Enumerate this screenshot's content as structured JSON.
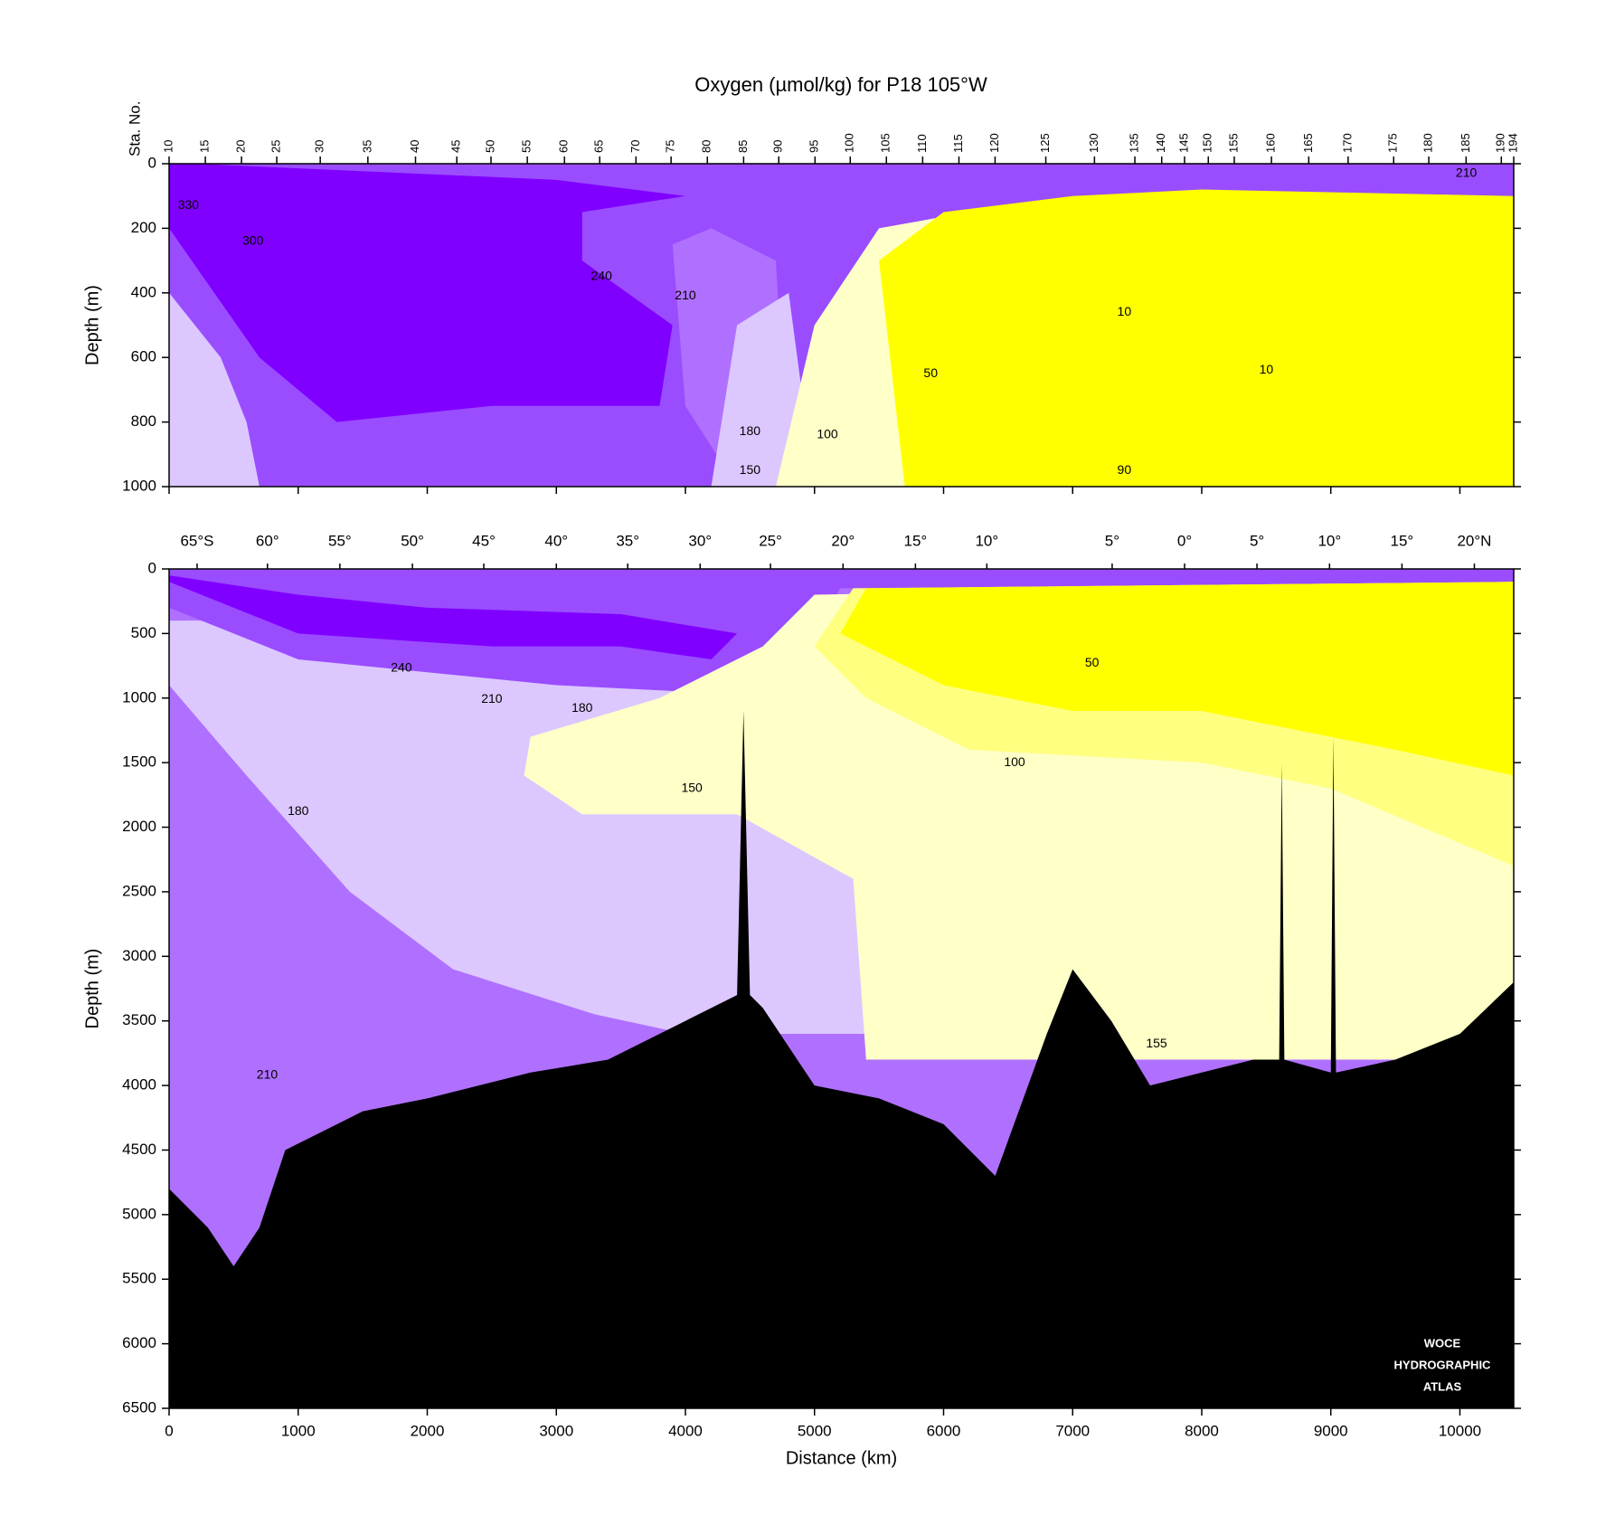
{
  "title": "Oxygen (µmol/kg) for P18 105°W",
  "chart_data": [
    {
      "type": "section",
      "station_axis_label": "Sta. No.",
      "y_label": "Depth (m)",
      "xlim": [
        0,
        10417
      ],
      "xticks": [
        0,
        1000,
        2000,
        3000,
        4000,
        5000,
        6000,
        7000,
        8000,
        9000,
        10000
      ],
      "ylim": [
        1000,
        0
      ],
      "yticks": [
        0,
        200,
        400,
        600,
        800,
        1000
      ],
      "station_ticks": [
        {
          "value": 0,
          "label": "10"
        },
        {
          "value": 281,
          "label": "15"
        },
        {
          "value": 561,
          "label": "20"
        },
        {
          "value": 834,
          "label": "25"
        },
        {
          "value": 1171,
          "label": "30"
        },
        {
          "value": 1540,
          "label": "35"
        },
        {
          "value": 1909,
          "label": "40"
        },
        {
          "value": 2229,
          "label": "45"
        },
        {
          "value": 2494,
          "label": "50"
        },
        {
          "value": 2775,
          "label": "55"
        },
        {
          "value": 3063,
          "label": "60"
        },
        {
          "value": 3336,
          "label": "65"
        },
        {
          "value": 3617,
          "label": "70"
        },
        {
          "value": 3889,
          "label": "75"
        },
        {
          "value": 4170,
          "label": "80"
        },
        {
          "value": 4451,
          "label": "85"
        },
        {
          "value": 4723,
          "label": "90"
        },
        {
          "value": 5004,
          "label": "95"
        },
        {
          "value": 5277,
          "label": "100"
        },
        {
          "value": 5557,
          "label": "105"
        },
        {
          "value": 5838,
          "label": "110"
        },
        {
          "value": 6119,
          "label": "115"
        },
        {
          "value": 6399,
          "label": "120"
        },
        {
          "value": 6792,
          "label": "125"
        },
        {
          "value": 7169,
          "label": "130"
        },
        {
          "value": 7482,
          "label": "135"
        },
        {
          "value": 7690,
          "label": "140"
        },
        {
          "value": 7867,
          "label": "145"
        },
        {
          "value": 8051,
          "label": "150"
        },
        {
          "value": 8252,
          "label": "155"
        },
        {
          "value": 8540,
          "label": "160"
        },
        {
          "value": 8829,
          "label": "165"
        },
        {
          "value": 9134,
          "label": "170"
        },
        {
          "value": 9487,
          "label": "175"
        },
        {
          "value": 9759,
          "label": "180"
        },
        {
          "value": 10048,
          "label": "185"
        },
        {
          "value": 10321,
          "label": "190"
        },
        {
          "value": 10417,
          "label": "194"
        }
      ],
      "background": "#9a4dff",
      "regions": [
        {
          "color": "#dcc8ff",
          "x": [
            0,
            0,
            700,
            600,
            400
          ],
          "depth": [
            400,
            1000,
            1000,
            800,
            600
          ]
        },
        {
          "color": "#8000ff",
          "x": [
            200,
            0,
            0,
            700,
            1300,
            2500,
            3800,
            3900,
            3200,
            3200,
            4000,
            3000
          ],
          "depth": [
            0,
            0,
            200,
            600,
            800,
            750,
            750,
            500,
            300,
            150,
            100,
            50
          ]
        },
        {
          "color": "#b070ff",
          "x": [
            3900,
            4200,
            4700,
            4800,
            4400,
            4000
          ],
          "depth": [
            250,
            200,
            300,
            1000,
            1000,
            750
          ]
        },
        {
          "color": "#dcc8ff",
          "x": [
            4400,
            4200,
            4700,
            4900,
            4800
          ],
          "depth": [
            500,
            1000,
            1000,
            700,
            400
          ]
        },
        {
          "color": "#ffffc8",
          "x": [
            4700,
            5000,
            5500,
            6200,
            6200
          ],
          "depth": [
            1000,
            500,
            200,
            150,
            1000
          ]
        },
        {
          "color": "#ffff00",
          "x": [
            5500,
            6000,
            7000,
            8000,
            10417,
            10417,
            5700
          ],
          "depth": [
            300,
            150,
            100,
            80,
            100,
            1000,
            1000
          ]
        },
        {
          "color": "#9a4dff",
          "x": [
            4600,
            6000,
            8000,
            10417,
            10417
          ],
          "depth": [
            0,
            120,
            60,
            60,
            0
          ]
        }
      ],
      "contour_labels": [
        {
          "text": "330",
          "x": 150,
          "depth": 130
        },
        {
          "text": "300",
          "x": 650,
          "depth": 240
        },
        {
          "text": "240",
          "x": 3350,
          "depth": 350
        },
        {
          "text": "210",
          "x": 4000,
          "depth": 410
        },
        {
          "text": "180",
          "x": 4500,
          "depth": 830
        },
        {
          "text": "150",
          "x": 4500,
          "depth": 950
        },
        {
          "text": "100",
          "x": 5100,
          "depth": 840
        },
        {
          "text": "50",
          "x": 5900,
          "depth": 650
        },
        {
          "text": "10",
          "x": 7400,
          "depth": 460
        },
        {
          "text": "10",
          "x": 8500,
          "depth": 640
        },
        {
          "text": "90",
          "x": 7400,
          "depth": 950
        },
        {
          "text": "210",
          "x": 10050,
          "depth": 30
        }
      ]
    },
    {
      "type": "section",
      "x_label": "Distance (km)",
      "y_label": "Depth (m)",
      "xlim": [
        0,
        10417
      ],
      "xticks": [
        0,
        1000,
        2000,
        3000,
        4000,
        5000,
        6000,
        7000,
        8000,
        9000,
        10000
      ],
      "ylim": [
        6500,
        0
      ],
      "yticks": [
        0,
        500,
        1000,
        1500,
        2000,
        2500,
        3000,
        3500,
        4000,
        4500,
        5000,
        5500,
        6000,
        6500
      ],
      "latitude_ticks": [
        {
          "value": 217,
          "label": "65°S"
        },
        {
          "value": 762,
          "label": "60°"
        },
        {
          "value": 1323,
          "label": "55°"
        },
        {
          "value": 1885,
          "label": "50°"
        },
        {
          "value": 2438,
          "label": "45°"
        },
        {
          "value": 3000,
          "label": "40°"
        },
        {
          "value": 3553,
          "label": "35°"
        },
        {
          "value": 4114,
          "label": "30°"
        },
        {
          "value": 4659,
          "label": "25°"
        },
        {
          "value": 5221,
          "label": "20°"
        },
        {
          "value": 5782,
          "label": "15°"
        },
        {
          "value": 6335,
          "label": "10°"
        },
        {
          "value": 7306,
          "label": "5°"
        },
        {
          "value": 7867,
          "label": "0°"
        },
        {
          "value": 8428,
          "label": "5°"
        },
        {
          "value": 8990,
          "label": "10°"
        },
        {
          "value": 9551,
          "label": "15°"
        },
        {
          "value": 10112,
          "label": "20°N"
        }
      ],
      "background": "#b070ff",
      "regions": [
        {
          "color": "#dcc8ff",
          "x": [
            0,
            0,
            600,
            1400,
            2200,
            3300,
            4000,
            10417,
            10417
          ],
          "depth": [
            400,
            900,
            1600,
            2500,
            3100,
            3450,
            3600,
            3600,
            400
          ]
        },
        {
          "color": "#9a4dff",
          "x": [
            0,
            0,
            1000,
            2000,
            3000,
            4000,
            4600,
            5000,
            5200,
            10417,
            10417
          ],
          "depth": [
            0,
            300,
            700,
            800,
            900,
            950,
            800,
            500,
            150,
            100,
            0
          ]
        },
        {
          "color": "#ffffc8",
          "x": [
            4600,
            3800,
            2800,
            2750,
            3200,
            4400,
            5300,
            5400,
            10417,
            10417,
            5000
          ],
          "depth": [
            600,
            1000,
            1300,
            1600,
            1900,
            1900,
            2400,
            3800,
            3800,
            100,
            200
          ]
        },
        {
          "color": "#ffff80",
          "x": [
            5000,
            5400,
            6200,
            8000,
            9000,
            10417,
            10417,
            5300
          ],
          "depth": [
            600,
            1000,
            1400,
            1500,
            1700,
            2300,
            100,
            150
          ]
        },
        {
          "color": "#ffff00",
          "x": [
            5200,
            6000,
            7000,
            8000,
            9500,
            10417,
            10417,
            5400
          ],
          "depth": [
            500,
            900,
            1100,
            1100,
            1400,
            1600,
            100,
            150
          ]
        },
        {
          "color": "#8000ff",
          "x": [
            0,
            1000,
            2500,
            3500,
            4200,
            4400,
            3500,
            2000,
            1000,
            0
          ],
          "depth": [
            100,
            500,
            600,
            600,
            700,
            500,
            350,
            300,
            200,
            50
          ]
        },
        {
          "color": "#9a4dff",
          "x": [
            5200,
            7000,
            10417,
            10417
          ],
          "depth": [
            0,
            80,
            80,
            0
          ]
        }
      ],
      "bathymetry": {
        "color": "#000000",
        "x": [
          0,
          300,
          500,
          700,
          900,
          1500,
          2000,
          2800,
          3400,
          4000,
          4400,
          4450,
          4500,
          4600,
          5000,
          5500,
          6000,
          6400,
          6800,
          7000,
          7300,
          7600,
          8000,
          8400,
          8600,
          8620,
          8640,
          9000,
          9020,
          9040,
          9500,
          10000,
          10417,
          10417,
          0
        ],
        "depth": [
          4800,
          5100,
          5400,
          5100,
          4500,
          4200,
          4100,
          3900,
          3800,
          3500,
          3300,
          1100,
          3300,
          3400,
          4000,
          4100,
          4300,
          4700,
          3600,
          3100,
          3500,
          4000,
          3900,
          3800,
          3800,
          1500,
          3800,
          3900,
          1300,
          3900,
          3800,
          3600,
          3200,
          6500,
          6500
        ]
      },
      "contour_labels": [
        {
          "text": "240",
          "x": 1800,
          "depth": 770
        },
        {
          "text": "210",
          "x": 2500,
          "depth": 1010
        },
        {
          "text": "180",
          "x": 3200,
          "depth": 1080
        },
        {
          "text": "150",
          "x": 4050,
          "depth": 1700
        },
        {
          "text": "100",
          "x": 6550,
          "depth": 1500
        },
        {
          "text": "50",
          "x": 7150,
          "depth": 730
        },
        {
          "text": "180",
          "x": 1000,
          "depth": 1880
        },
        {
          "text": "210",
          "x": 760,
          "depth": 3920
        },
        {
          "text": "155",
          "x": 7650,
          "depth": 3680
        }
      ],
      "logo": [
        "WOCE",
        "HYDROGRAPHIC",
        "ATLAS"
      ]
    }
  ]
}
